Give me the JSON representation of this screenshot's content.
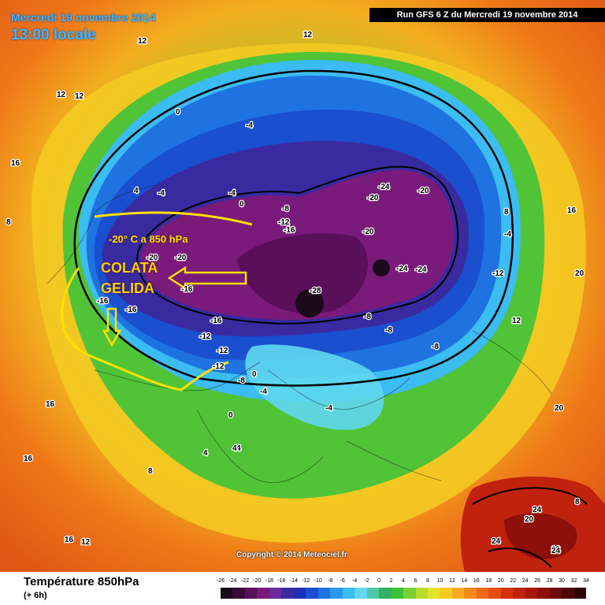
{
  "header": {
    "date": "Mercredi 19 novembre 2014",
    "time": "13:00 locale",
    "run": "Run GFS 6 Z du Mercredi 19 novembre 2014"
  },
  "annotation": {
    "title": "-20° C a 850 hPa",
    "line1": "COLATA",
    "line2": "GELIDA"
  },
  "footer": {
    "product": "Température 850hPa",
    "step": "(+ 6h)",
    "copyright": "Copyright © 2014 Meteociel.fr"
  },
  "scale": {
    "ticks": [
      "-26",
      "-24",
      "-22",
      "-20",
      "-18",
      "-16",
      "-14",
      "-12",
      "-10",
      "-8",
      "-6",
      "-4",
      "-2",
      "0",
      "2",
      "4",
      "6",
      "8",
      "10",
      "12",
      "14",
      "16",
      "18",
      "20",
      "22",
      "24",
      "26",
      "28",
      "30",
      "32",
      "34"
    ],
    "colors": [
      "#1a0a1a",
      "#3a0a3a",
      "#5a0f5a",
      "#7a1a7a",
      "#6a2a9a",
      "#3a2aa0",
      "#1f2fb5",
      "#1a4fd0",
      "#1f73e0",
      "#2a98ee",
      "#3bbcf2",
      "#5fd7ee",
      "#4fc8a8",
      "#33b060",
      "#3fc23a",
      "#7ad030",
      "#b7de2a",
      "#e3e32a",
      "#f4cb22",
      "#f7aa1f",
      "#f58a1a",
      "#ef6a16",
      "#e34c12",
      "#d33010",
      "#c0220e",
      "#a8160c",
      "#8e0f0b",
      "#6e0a0a",
      "#4e0606",
      "#2e0303"
    ]
  },
  "map_labels": [
    {
      "t": "12"
    },
    {
      "t": "16"
    },
    {
      "t": "12"
    },
    {
      "t": "12"
    },
    {
      "t": "12"
    },
    {
      "t": "8"
    },
    {
      "t": "4"
    },
    {
      "t": "0"
    },
    {
      "t": "-4"
    },
    {
      "t": "-4"
    },
    {
      "t": "-4"
    },
    {
      "t": "0"
    },
    {
      "t": "-8"
    },
    {
      "t": "-12"
    },
    {
      "t": "-16"
    },
    {
      "t": "-20"
    },
    {
      "t": "-24"
    },
    {
      "t": "-20"
    },
    {
      "t": "-24"
    },
    {
      "t": "-24"
    },
    {
      "t": "-28"
    },
    {
      "t": "-20"
    },
    {
      "t": "-16"
    },
    {
      "t": "-12"
    },
    {
      "t": "-8"
    },
    {
      "t": "-16"
    },
    {
      "t": "-16"
    },
    {
      "t": "-16"
    },
    {
      "t": "-20"
    },
    {
      "t": "-20"
    },
    {
      "t": "-12"
    },
    {
      "t": "-8"
    },
    {
      "t": "-4"
    },
    {
      "t": "0"
    },
    {
      "t": "4"
    },
    {
      "t": "8"
    },
    {
      "t": "0"
    },
    {
      "t": "4"
    },
    {
      "t": "8"
    },
    {
      "t": "12"
    },
    {
      "t": "16"
    },
    {
      "t": "20"
    },
    {
      "t": "24"
    },
    {
      "t": "20"
    },
    {
      "t": "24"
    },
    {
      "t": "24"
    },
    {
      "t": "16"
    },
    {
      "t": "20"
    },
    {
      "t": "16"
    },
    {
      "t": "12"
    },
    {
      "t": "16"
    },
    {
      "t": "8"
    },
    {
      "t": "12"
    },
    {
      "t": "-12"
    },
    {
      "t": "-12"
    },
    {
      "t": "-8"
    },
    {
      "t": "4"
    },
    {
      "t": "-4"
    },
    {
      "t": "-8"
    },
    {
      "t": "-4"
    }
  ]
}
